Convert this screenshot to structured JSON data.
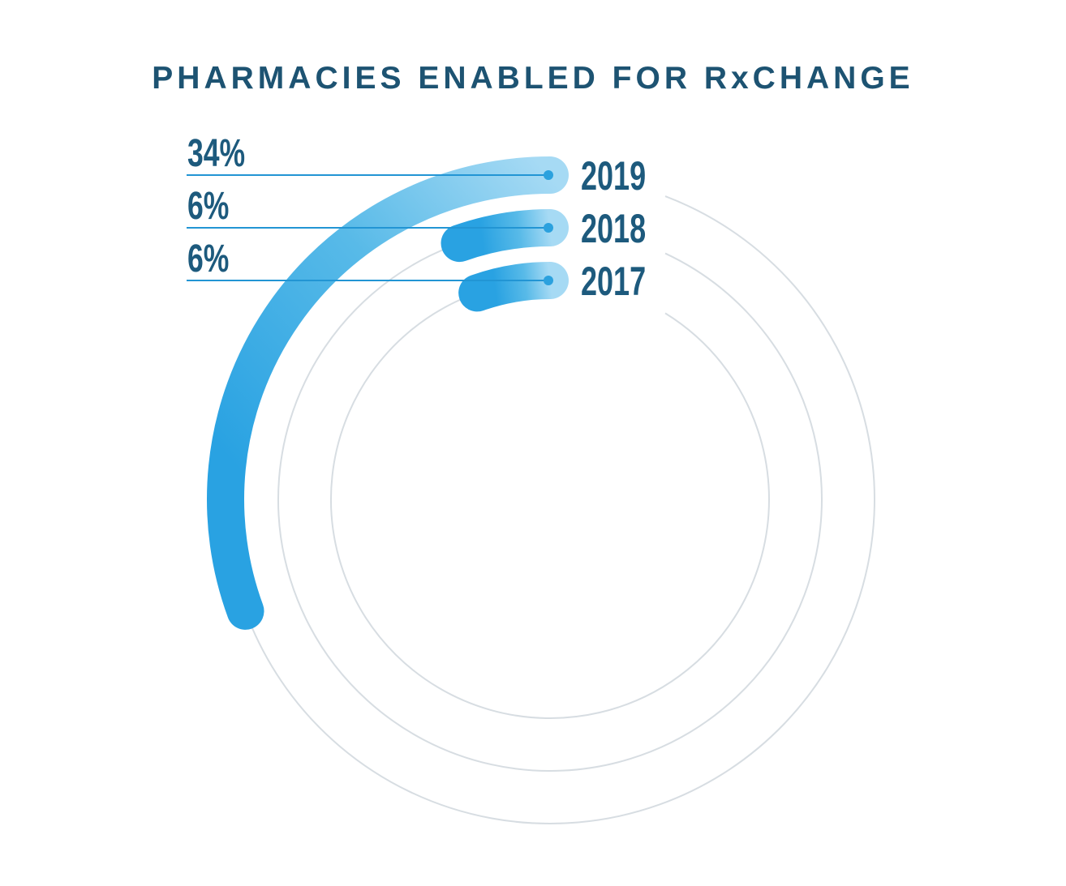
{
  "title": "PHARMACIES ENABLED FOR RxCHANGE",
  "chart_data": {
    "type": "radial-bar",
    "title": "PHARMACIES ENABLED FOR RxCHANGE",
    "unit": "%",
    "direction": "counterclockwise-from-top",
    "grid": "concentric-gray-track-rings",
    "legend_position": "percent-labels-left, year-labels-right",
    "series": [
      {
        "label": "2019",
        "value": 34,
        "value_label": "34%"
      },
      {
        "label": "2018",
        "value": 6,
        "value_label": "6%"
      },
      {
        "label": "2017",
        "value": 6,
        "value_label": "6%"
      }
    ]
  },
  "colors": {
    "background": "#ffffff",
    "title_text": "#1d5372",
    "label_text": "#1d5a7d",
    "leader_line": "#2295d4",
    "dot": "#2ba1de",
    "arc_light": "#a6daf4",
    "arc_mid": "#58bae8",
    "arc_dark": "#29a2e2",
    "track": "#d7dde2"
  }
}
